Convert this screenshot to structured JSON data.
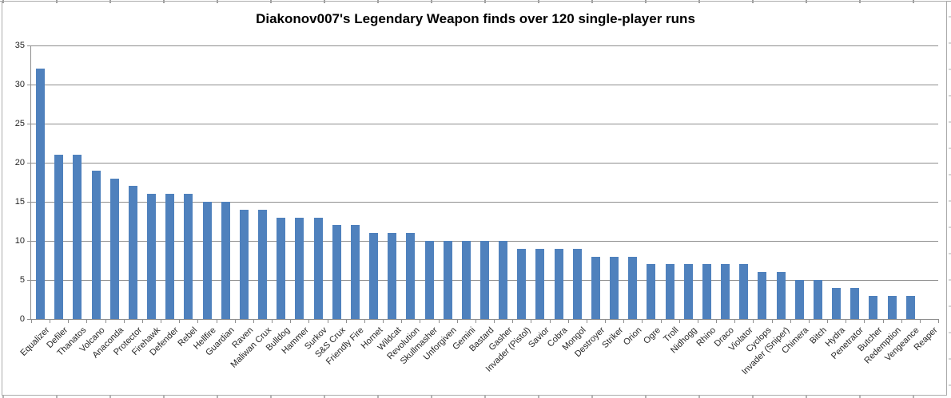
{
  "chart_data": {
    "type": "bar",
    "title": "Diakonov007's Legendary Weapon finds over 120 single-player runs",
    "categories": [
      "Equalizer",
      "Defiler",
      "Thanatos",
      "Volcano",
      "Anaconda",
      "Protector",
      "Firehawk",
      "Defender",
      "Rebel",
      "Hellfire",
      "Guardian",
      "Raven",
      "Maliwan Crux",
      "Bulldog",
      "Hammer",
      "Surkov",
      "S&S Crux",
      "Friendly Fire",
      "Hornet",
      "Wildcat",
      "Revolution",
      "Skullmasher",
      "Unforgiven",
      "Gemini",
      "Bastard",
      "Gasher",
      "Invader (Pistol)",
      "Savior",
      "Cobra",
      "Mongol",
      "Destroyer",
      "Striker",
      "Orion",
      "Ogre",
      "Troll",
      "Nidhogg",
      "Rhino",
      "Draco",
      "Violator",
      "Cyclops",
      "Invader (Sniper)",
      "Chimera",
      "Bitch",
      "Hydra",
      "Penetrator",
      "Butcher",
      "Redemption",
      "Vengeance",
      "Reaper"
    ],
    "values": [
      32,
      21,
      21,
      19,
      18,
      17,
      16,
      16,
      16,
      15,
      15,
      14,
      14,
      13,
      13,
      13,
      12,
      12,
      11,
      11,
      11,
      10,
      10,
      10,
      10,
      10,
      9,
      9,
      9,
      9,
      8,
      8,
      8,
      7,
      7,
      7,
      7,
      7,
      7,
      6,
      6,
      5,
      5,
      4,
      4,
      3,
      3,
      3,
      0
    ],
    "ylim": [
      0,
      35
    ],
    "yticks": [
      0,
      5,
      10,
      15,
      20,
      25,
      30,
      35
    ],
    "grid": true,
    "legend": false,
    "bar_color": "#4F81BD",
    "gridline_color": "#8E8E8E",
    "axis_color": "#8E8E8E",
    "tick_label_color": "#262626"
  }
}
